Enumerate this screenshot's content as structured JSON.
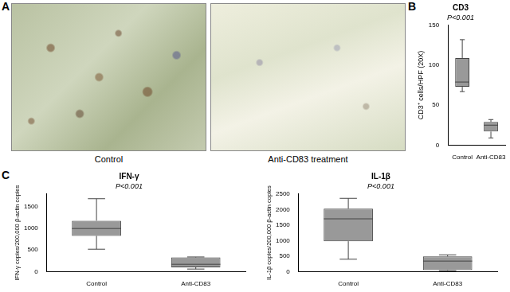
{
  "images": {
    "panel": "A",
    "captions": [
      "Control",
      "Anti-CD83 treatment"
    ]
  },
  "chart_data": [
    {
      "panel": "B",
      "type": "box",
      "title": "CD3",
      "annotation": "P<0.001",
      "y_label": "CD3⁺ cells/HPF (20X)",
      "categories": [
        "Control",
        "Anti-CD83"
      ],
      "boxes": [
        {
          "min": 67,
          "q1": 73,
          "median": 79,
          "q3": 109,
          "max": 132
        },
        {
          "min": 9,
          "q1": 17,
          "median": 25,
          "q3": 29,
          "max": 32
        }
      ],
      "color": "#999999",
      "ylim": [
        0,
        150
      ],
      "yticks": [
        0,
        50,
        100,
        150
      ],
      "grid": false
    },
    {
      "panel": "C",
      "type": "box",
      "title": "IFN-γ",
      "annotation": "P<0.001",
      "y_label": "IFN-γ copies/200,000 β-actin copies",
      "categories": [
        "Control",
        "Anti-CD83"
      ],
      "boxes": [
        {
          "min": 520,
          "q1": 830,
          "median": 1000,
          "q3": 1180,
          "max": 1690
        },
        {
          "min": 60,
          "q1": 100,
          "median": 170,
          "q3": 330,
          "max": 340
        }
      ],
      "color": "#999999",
      "ylim": [
        0,
        1800
      ],
      "yticks": [
        0,
        500,
        1000,
        1500
      ],
      "grid": false
    },
    {
      "type": "box",
      "title": "IL-1β",
      "annotation": "P<0.001",
      "y_label": "IL-1β copies/200,000 β-actin copies",
      "categories": [
        "Control",
        "Anti-CD83"
      ],
      "boxes": [
        {
          "min": 400,
          "q1": 980,
          "median": 1700,
          "q3": 2030,
          "max": 2360
        },
        {
          "min": 30,
          "q1": 50,
          "median": 340,
          "q3": 490,
          "max": 540
        }
      ],
      "color": "#999999",
      "ylim": [
        0,
        2500
      ],
      "yticks": [
        0,
        500,
        1000,
        1500,
        2000,
        2500
      ],
      "grid": false
    }
  ]
}
